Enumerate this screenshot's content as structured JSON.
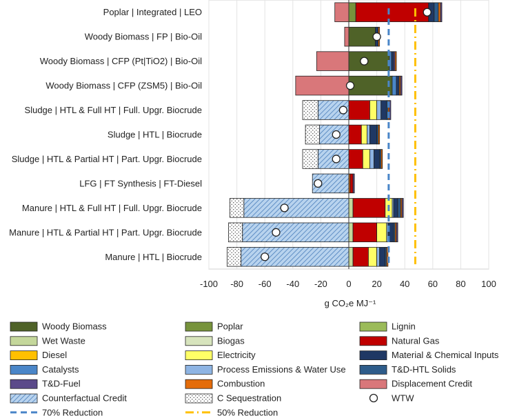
{
  "colors": {
    "woody": "#4f6228",
    "poplar": "#77933c",
    "lignin": "#9bbb59",
    "wetwaste": "#c4d79b",
    "biogas": "#d7e4bd",
    "natgas": "#c00000",
    "diesel": "#ffc000",
    "electricity": "#ffff66",
    "material": "#1f3864",
    "catalysts": "#4a86c8",
    "process": "#8eb4e3",
    "tdhtl": "#2e5c8a",
    "tdfuel": "#5b4a8a",
    "combustion": "#e46c0a",
    "displacement": "#d9777a",
    "counterfactual": "#b8d3ee",
    "counterfactual_hatch": "#4a7ebb",
    "sequestration": "#ffffff",
    "red70": "#4a86c8",
    "yellow50": "#ffc000"
  },
  "chart_data": {
    "type": "bar",
    "orientation": "horizontal-stacked",
    "xlabel": "g CO₂e MJ⁻¹",
    "xlim": [
      -100,
      100
    ],
    "xticks": [
      "-100",
      "-80",
      "-60",
      "-40",
      "-20",
      "0",
      "20",
      "40",
      "60",
      "80",
      "100"
    ],
    "categories": [
      "Poplar | Integrated | LEO",
      "Woody Biomass | FP | Bio-Oil",
      "Woody Biomass | CFP (Pt|TiO2) | Bio-Oil",
      "Woody Biomass | CFP (ZSM5) | Bio-Oil",
      "Sludge | HTL & Full HT | Full. Upgr. Biocrude",
      "Sludge | HTL | Biocrude",
      "Sludge | HTL & Partial HT | Part. Upgr. Biocrude",
      "LFG | FT Synthesis | FT-Diesel",
      "Manure | HTL & Full HT | Full. Upgr. Biocrude",
      "Manure | HTL & Partial HT | Part. Upgr. Biocrude",
      "Manure | HTL | Biocrude"
    ],
    "bars": [
      {
        "negative": [
          {
            "key": "displacement",
            "value": -10
          }
        ],
        "positive": [
          {
            "key": "poplar",
            "value": 5
          },
          {
            "key": "natgas",
            "value": 52
          },
          {
            "key": "material",
            "value": 4
          },
          {
            "key": "tdhtl",
            "value": 3
          },
          {
            "key": "combustion",
            "value": 1.5
          },
          {
            "key": "tdfuel",
            "value": 1
          }
        ],
        "wtw": 56
      },
      {
        "negative": [
          {
            "key": "displacement",
            "value": -3
          }
        ],
        "positive": [
          {
            "key": "woody",
            "value": 19
          },
          {
            "key": "material",
            "value": 2
          },
          {
            "key": "combustion",
            "value": 1
          }
        ],
        "wtw": 20
      },
      {
        "negative": [
          {
            "key": "displacement",
            "value": -23
          }
        ],
        "positive": [
          {
            "key": "woody",
            "value": 29
          },
          {
            "key": "catalysts",
            "value": 1.5
          },
          {
            "key": "material",
            "value": 1.5
          },
          {
            "key": "tdfuel",
            "value": 1
          },
          {
            "key": "combustion",
            "value": 1
          }
        ],
        "wtw": 11
      },
      {
        "negative": [
          {
            "key": "displacement",
            "value": -38
          }
        ],
        "positive": [
          {
            "key": "woody",
            "value": 31
          },
          {
            "key": "catalysts",
            "value": 3
          },
          {
            "key": "material",
            "value": 2
          },
          {
            "key": "combustion",
            "value": 1
          },
          {
            "key": "tdfuel",
            "value": 1
          }
        ],
        "wtw": 1
      },
      {
        "negative": [
          {
            "key": "counterfactual",
            "value": -22
          },
          {
            "key": "sequestration",
            "value": -11
          }
        ],
        "positive": [
          {
            "key": "natgas",
            "value": 15
          },
          {
            "key": "electricity",
            "value": 5
          },
          {
            "key": "process",
            "value": 3
          },
          {
            "key": "material",
            "value": 4
          },
          {
            "key": "tdhtl",
            "value": 1
          },
          {
            "key": "combustion",
            "value": 1
          },
          {
            "key": "tdfuel",
            "value": 1
          }
        ],
        "wtw": -4
      },
      {
        "negative": [
          {
            "key": "counterfactual",
            "value": -21
          },
          {
            "key": "sequestration",
            "value": -10
          }
        ],
        "positive": [
          {
            "key": "natgas",
            "value": 9
          },
          {
            "key": "electricity",
            "value": 4
          },
          {
            "key": "process",
            "value": 2
          },
          {
            "key": "material",
            "value": 5
          },
          {
            "key": "tdhtl",
            "value": 1
          },
          {
            "key": "combustion",
            "value": 1
          }
        ],
        "wtw": -9
      },
      {
        "negative": [
          {
            "key": "counterfactual",
            "value": -22
          },
          {
            "key": "sequestration",
            "value": -11
          }
        ],
        "positive": [
          {
            "key": "natgas",
            "value": 10
          },
          {
            "key": "electricity",
            "value": 5
          },
          {
            "key": "process",
            "value": 3
          },
          {
            "key": "material",
            "value": 4
          },
          {
            "key": "tdhtl",
            "value": 1
          },
          {
            "key": "combustion",
            "value": 1
          }
        ],
        "wtw": -9
      },
      {
        "negative": [
          {
            "key": "counterfactual",
            "value": -26
          }
        ],
        "positive": [
          {
            "key": "combustion",
            "value": 1
          },
          {
            "key": "natgas",
            "value": 2
          },
          {
            "key": "tdfuel",
            "value": 1
          }
        ],
        "wtw": -22
      },
      {
        "negative": [
          {
            "key": "counterfactual",
            "value": -75
          },
          {
            "key": "sequestration",
            "value": -10
          }
        ],
        "positive": [
          {
            "key": "wetwaste",
            "value": 3
          },
          {
            "key": "natgas",
            "value": 23
          },
          {
            "key": "electricity",
            "value": 5
          },
          {
            "key": "process",
            "value": 1
          },
          {
            "key": "material",
            "value": 3
          },
          {
            "key": "tdhtl",
            "value": 2
          },
          {
            "key": "combustion",
            "value": 1
          },
          {
            "key": "tdfuel",
            "value": 1
          }
        ],
        "wtw": -46
      },
      {
        "negative": [
          {
            "key": "counterfactual",
            "value": -76
          },
          {
            "key": "sequestration",
            "value": -10
          }
        ],
        "positive": [
          {
            "key": "wetwaste",
            "value": 3
          },
          {
            "key": "natgas",
            "value": 17
          },
          {
            "key": "electricity",
            "value": 7
          },
          {
            "key": "process",
            "value": 1
          },
          {
            "key": "material",
            "value": 4
          },
          {
            "key": "tdhtl",
            "value": 1
          },
          {
            "key": "combustion",
            "value": 1
          },
          {
            "key": "tdfuel",
            "value": 1
          }
        ],
        "wtw": -52
      },
      {
        "negative": [
          {
            "key": "counterfactual",
            "value": -77
          },
          {
            "key": "sequestration",
            "value": -10
          }
        ],
        "positive": [
          {
            "key": "wetwaste",
            "value": 3
          },
          {
            "key": "natgas",
            "value": 11
          },
          {
            "key": "electricity",
            "value": 6
          },
          {
            "key": "process",
            "value": 2
          },
          {
            "key": "material",
            "value": 4
          },
          {
            "key": "tdhtl",
            "value": 1
          },
          {
            "key": "combustion",
            "value": 1
          }
        ],
        "wtw": -60
      }
    ],
    "reference_lines": [
      {
        "key": "red70",
        "value": 28.5,
        "label": "70% Reduction",
        "style": "dashed"
      },
      {
        "key": "red50",
        "value": 47.5,
        "label": "50% Reduction",
        "style": "dashdot"
      }
    ],
    "legend": [
      {
        "key": "woody",
        "label": "Woody Biomass",
        "kind": "solid"
      },
      {
        "key": "poplar",
        "label": "Poplar",
        "kind": "solid"
      },
      {
        "key": "lignin",
        "label": "Lignin",
        "kind": "solid"
      },
      {
        "key": "wetwaste",
        "label": "Wet Waste",
        "kind": "solid"
      },
      {
        "key": "biogas",
        "label": "Biogas",
        "kind": "solid"
      },
      {
        "key": "natgas",
        "label": "Natural Gas",
        "kind": "solid"
      },
      {
        "key": "diesel",
        "label": "Diesel",
        "kind": "solid"
      },
      {
        "key": "electricity",
        "label": "Electricity",
        "kind": "solid"
      },
      {
        "key": "material",
        "label": "Material & Chemical Inputs",
        "kind": "solid"
      },
      {
        "key": "catalysts",
        "label": "Catalysts",
        "kind": "solid"
      },
      {
        "key": "process",
        "label": "Process Emissions & Water Use",
        "kind": "solid"
      },
      {
        "key": "tdhtl",
        "label": "T&D-HTL Solids",
        "kind": "solid"
      },
      {
        "key": "tdfuel",
        "label": "T&D-Fuel",
        "kind": "solid"
      },
      {
        "key": "combustion",
        "label": "Combustion",
        "kind": "solid"
      },
      {
        "key": "displacement",
        "label": "Displacement Credit",
        "kind": "solid"
      },
      {
        "key": "counterfactual",
        "label": "Counterfactual Credit",
        "kind": "hatch"
      },
      {
        "key": "sequestration",
        "label": "C Sequestration",
        "kind": "dots"
      },
      {
        "key": "wtw",
        "label": "WTW",
        "kind": "circle"
      },
      {
        "key": "red70",
        "label": "70% Reduction",
        "kind": "dashline"
      },
      {
        "key": "red50",
        "label": "50% Reduction",
        "kind": "dashdotline"
      }
    ]
  }
}
